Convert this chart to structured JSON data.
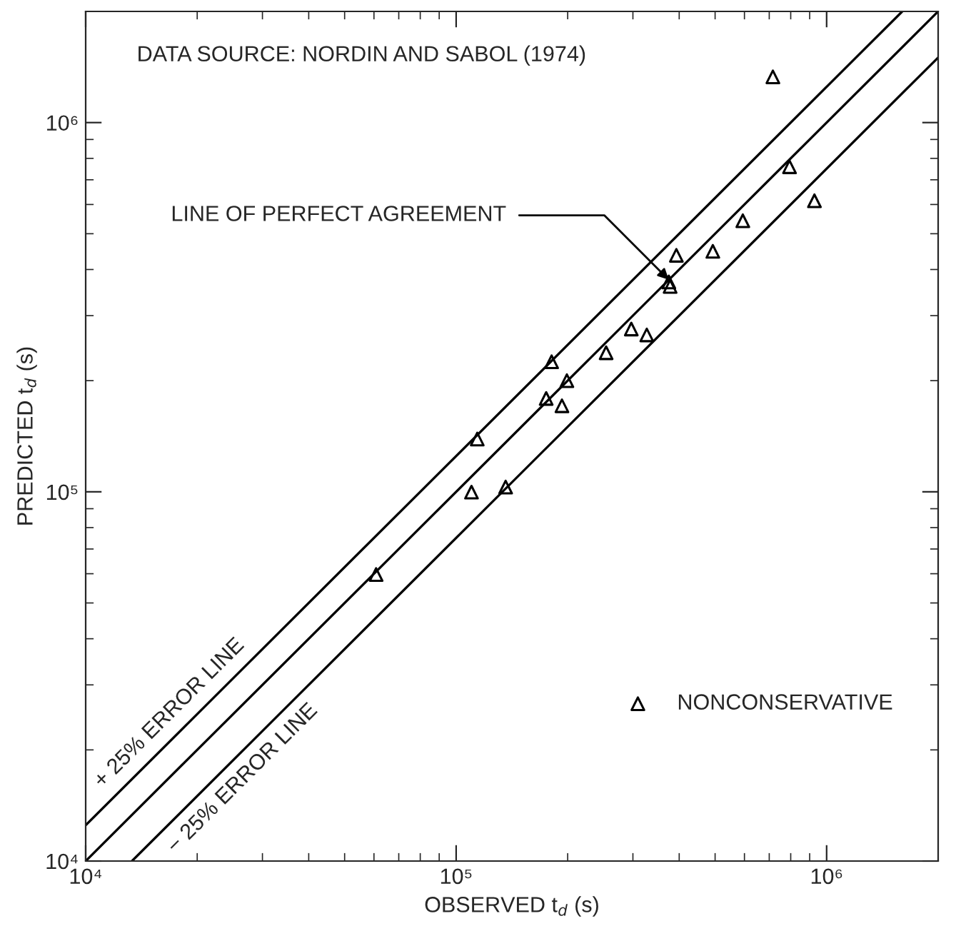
{
  "chart_data": {
    "type": "scatter",
    "xlabel": "OBSERVED t$_{d}$ (s)",
    "ylabel": "PREDICTED t$_{d}$ (s)",
    "log": "xy",
    "xlim": [
      10000,
      2000000
    ],
    "ylim": [
      10000,
      2000000
    ],
    "xticks": [
      {
        "value": 10000,
        "label": "10⁴"
      },
      {
        "value": 100000,
        "label": "10⁵"
      },
      {
        "value": 1000000,
        "label": "10⁶"
      }
    ],
    "yticks": [
      {
        "value": 10000,
        "label": "10⁴"
      },
      {
        "value": 100000,
        "label": "10⁵"
      },
      {
        "value": 1000000,
        "label": "10⁶"
      }
    ],
    "grid": false,
    "legend": "bottom right",
    "marker": "triangle",
    "series": [
      {
        "name": "NONCONSERVATIVE",
        "color": "#000000",
        "x": [
          716000,
          794000,
          927000,
          594000,
          493000,
          393000,
          375000,
          378000,
          297000,
          327000,
          254000,
          181000,
          199000,
          175000,
          193000,
          114000,
          110000,
          136000,
          60800
        ],
        "values": [
          1330000,
          759000,
          614000,
          542000,
          448000,
          437000,
          370000,
          360000,
          276000,
          266000,
          238000,
          225000,
          200000,
          179000,
          171000,
          139000,
          99800,
          103000,
          59700
        ]
      },
      {
        "name": "+ 25% ERROR LINE",
        "type": "line",
        "color": "#000000",
        "line_style": "solid",
        "marker": "none",
        "x": [
          10000,
          1600000
        ],
        "values": [
          12500,
          2000000
        ]
      },
      {
        "type": "line",
        "color": "#000000",
        "line_style": "solid",
        "marker": "none",
        "x": [
          10000,
          2000000
        ],
        "values": [
          10000,
          2000000
        ]
      },
      {
        "name": "− 25% ERROR LINE",
        "type": "line",
        "color": "#000000",
        "line_style": "solid",
        "marker": "none",
        "x": [
          13333,
          2000000
        ],
        "values": [
          10000,
          1500000
        ]
      }
    ],
    "annotations": [
      "DATA SOURCE: NORDIN AND SABOL (1974)",
      {
        "text": "LINE OF PERFECT AGREEMENT",
        "x": 375000,
        "y": 375000
      }
    ]
  }
}
